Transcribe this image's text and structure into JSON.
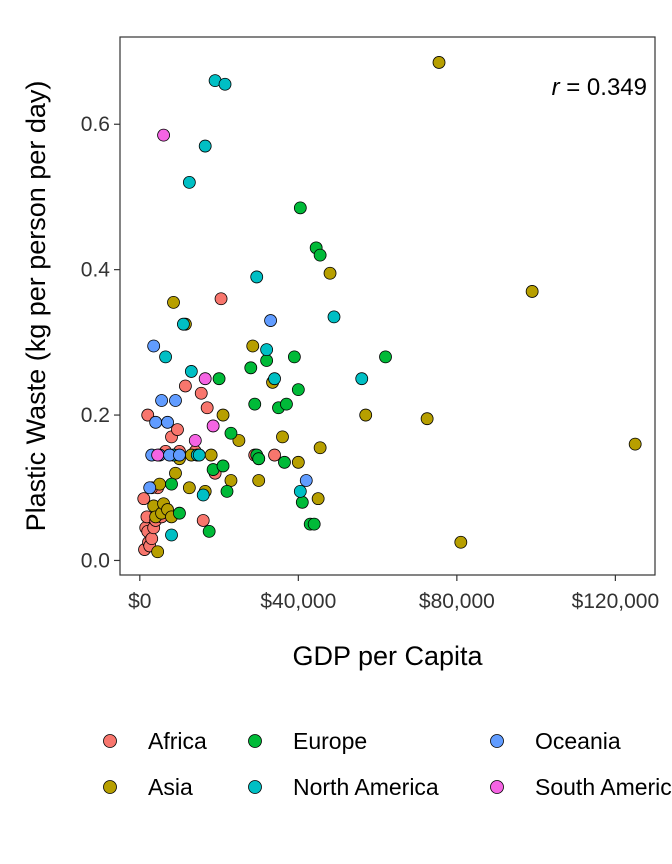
{
  "chart_data": {
    "type": "scatter",
    "xlabel": "GDP per Capita",
    "ylabel": "Plastic Waste (kg per person per day)",
    "xlim": [
      -5000,
      130000
    ],
    "ylim": [
      -0.02,
      0.72
    ],
    "x_ticks": [
      0,
      40000,
      80000,
      120000
    ],
    "x_tick_labels": [
      "$0",
      "$40,000",
      "$80,000",
      "$120,000"
    ],
    "y_ticks": [
      0.0,
      0.2,
      0.4,
      0.6
    ],
    "y_tick_labels": [
      "0.0",
      "0.2",
      "0.4",
      "0.6"
    ],
    "annotation": {
      "r_symbol": "r",
      "text": " = 0.349"
    },
    "grid": false,
    "legend_position": "bottom",
    "series": [
      {
        "name": "Africa",
        "color": "#F8766D",
        "points": [
          [
            1200,
            0.015
          ],
          [
            1500,
            0.045
          ],
          [
            1800,
            0.06
          ],
          [
            2000,
            0.04
          ],
          [
            2200,
            0.025
          ],
          [
            2500,
            0.02
          ],
          [
            3000,
            0.03
          ],
          [
            3500,
            0.045
          ],
          [
            4000,
            0.055
          ],
          [
            1000,
            0.085
          ],
          [
            2000,
            0.2
          ],
          [
            4500,
            0.1
          ],
          [
            5500,
            0.06
          ],
          [
            6500,
            0.15
          ],
          [
            8000,
            0.17
          ],
          [
            9500,
            0.18
          ],
          [
            10000,
            0.15
          ],
          [
            11500,
            0.24
          ],
          [
            14000,
            0.15
          ],
          [
            15500,
            0.23
          ],
          [
            17000,
            0.21
          ],
          [
            19000,
            0.12
          ],
          [
            20500,
            0.36
          ],
          [
            16000,
            0.055
          ],
          [
            29000,
            0.145
          ],
          [
            30000,
            0.14
          ],
          [
            34000,
            0.145
          ],
          [
            3000,
            0.1
          ]
        ]
      },
      {
        "name": "Asia",
        "color": "#B79F00",
        "points": [
          [
            3500,
            0.075
          ],
          [
            4000,
            0.06
          ],
          [
            4500,
            0.012
          ],
          [
            5000,
            0.105
          ],
          [
            5500,
            0.065
          ],
          [
            6000,
            0.078
          ],
          [
            7000,
            0.07
          ],
          [
            8000,
            0.06
          ],
          [
            8500,
            0.355
          ],
          [
            9000,
            0.12
          ],
          [
            10000,
            0.14
          ],
          [
            11500,
            0.325
          ],
          [
            12500,
            0.1
          ],
          [
            13000,
            0.145
          ],
          [
            16500,
            0.095
          ],
          [
            18000,
            0.145
          ],
          [
            21000,
            0.2
          ],
          [
            23000,
            0.11
          ],
          [
            25000,
            0.165
          ],
          [
            28500,
            0.295
          ],
          [
            30000,
            0.11
          ],
          [
            33500,
            0.245
          ],
          [
            36000,
            0.17
          ],
          [
            40000,
            0.135
          ],
          [
            45000,
            0.085
          ],
          [
            45500,
            0.155
          ],
          [
            48000,
            0.395
          ],
          [
            57000,
            0.2
          ],
          [
            72500,
            0.195
          ],
          [
            75500,
            0.685
          ],
          [
            81000,
            0.025
          ],
          [
            99000,
            0.37
          ],
          [
            125000,
            0.16
          ]
        ]
      },
      {
        "name": "Europe",
        "color": "#00BA38",
        "points": [
          [
            8000,
            0.105
          ],
          [
            10000,
            0.065
          ],
          [
            17500,
            0.04
          ],
          [
            18500,
            0.125
          ],
          [
            20000,
            0.25
          ],
          [
            21000,
            0.13
          ],
          [
            22000,
            0.095
          ],
          [
            23000,
            0.175
          ],
          [
            28000,
            0.265
          ],
          [
            29000,
            0.215
          ],
          [
            29500,
            0.145
          ],
          [
            30000,
            0.14
          ],
          [
            32000,
            0.275
          ],
          [
            35000,
            0.21
          ],
          [
            36500,
            0.135
          ],
          [
            37000,
            0.215
          ],
          [
            39000,
            0.28
          ],
          [
            40000,
            0.235
          ],
          [
            40500,
            0.485
          ],
          [
            41000,
            0.08
          ],
          [
            43000,
            0.05
          ],
          [
            44000,
            0.05
          ],
          [
            44500,
            0.43
          ],
          [
            45500,
            0.42
          ],
          [
            62000,
            0.28
          ]
        ]
      },
      {
        "name": "North America",
        "color": "#00BFC4",
        "points": [
          [
            8000,
            0.035
          ],
          [
            11000,
            0.325
          ],
          [
            12500,
            0.52
          ],
          [
            13000,
            0.26
          ],
          [
            14500,
            0.145
          ],
          [
            15000,
            0.145
          ],
          [
            16000,
            0.09
          ],
          [
            16500,
            0.57
          ],
          [
            19000,
            0.66
          ],
          [
            21500,
            0.655
          ],
          [
            29500,
            0.39
          ],
          [
            32000,
            0.29
          ],
          [
            34000,
            0.25
          ],
          [
            40500,
            0.095
          ],
          [
            49000,
            0.335
          ],
          [
            56000,
            0.25
          ],
          [
            6500,
            0.28
          ],
          [
            8500,
            0.145
          ]
        ]
      },
      {
        "name": "Oceania",
        "color": "#619CFF",
        "points": [
          [
            2500,
            0.1
          ],
          [
            3000,
            0.145
          ],
          [
            3500,
            0.295
          ],
          [
            4000,
            0.19
          ],
          [
            5000,
            0.145
          ],
          [
            5500,
            0.22
          ],
          [
            7000,
            0.19
          ],
          [
            7500,
            0.145
          ],
          [
            9000,
            0.22
          ],
          [
            10000,
            0.145
          ],
          [
            33000,
            0.33
          ],
          [
            42000,
            0.11
          ]
        ]
      },
      {
        "name": "South America",
        "color": "#F564E3",
        "points": [
          [
            6000,
            0.585
          ],
          [
            14000,
            0.165
          ],
          [
            16500,
            0.25
          ],
          [
            18500,
            0.185
          ],
          [
            4500,
            0.145
          ]
        ]
      }
    ]
  }
}
